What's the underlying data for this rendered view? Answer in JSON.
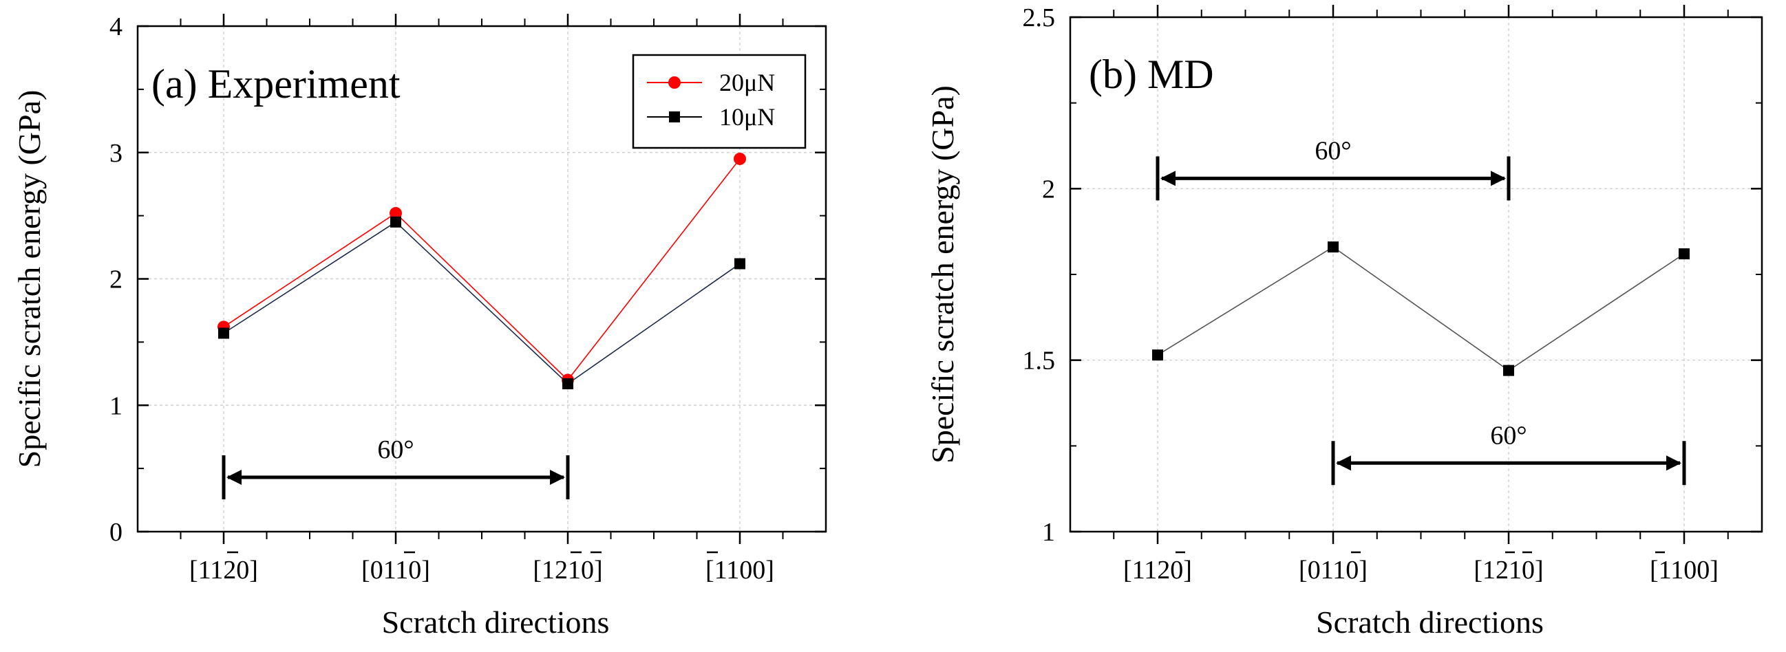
{
  "chart_data": [
    {
      "type": "line",
      "title": "(a) Experiment",
      "xlabel": "Scratch directions",
      "ylabel": "Specific scratch energy (GPa)",
      "categories": [
        "[1120]",
        "[0110]",
        "[1210]",
        "[1100]"
      ],
      "ylim": [
        0,
        4
      ],
      "yticks": [
        "0",
        "1",
        "2",
        "3",
        "4"
      ],
      "grid": true,
      "legend_position": "top-right",
      "series": [
        {
          "name": "20μN",
          "color": "#ff0000",
          "marker": "circle",
          "values": [
            1.62,
            2.52,
            1.2,
            2.95
          ]
        },
        {
          "name": "10μN",
          "color": "#000000",
          "marker": "square",
          "values": [
            1.57,
            2.45,
            1.17,
            2.12
          ]
        }
      ],
      "annotations": [
        {
          "text": "60°",
          "from_category": 0,
          "to_category": 2,
          "y": 0.43
        }
      ]
    },
    {
      "type": "line",
      "title": "(b) MD",
      "xlabel": "Scratch directions",
      "ylabel": "Specific scratch energy (GPa)",
      "categories": [
        "[1120]",
        "[0110]",
        "[1210]",
        "[1100]"
      ],
      "ylim": [
        1,
        2.5
      ],
      "yticks": [
        "1",
        "1.5",
        "2",
        "2.5"
      ],
      "grid": true,
      "series": [
        {
          "name": "MD",
          "color": "#000000",
          "marker": "square",
          "values": [
            1.515,
            1.83,
            1.47,
            1.81
          ]
        }
      ],
      "annotations": [
        {
          "text": "60°",
          "from_category": 0,
          "to_category": 2,
          "y": 2.03
        },
        {
          "text": "60°",
          "from_category": 1,
          "to_category": 3,
          "y": 1.2
        }
      ]
    }
  ]
}
